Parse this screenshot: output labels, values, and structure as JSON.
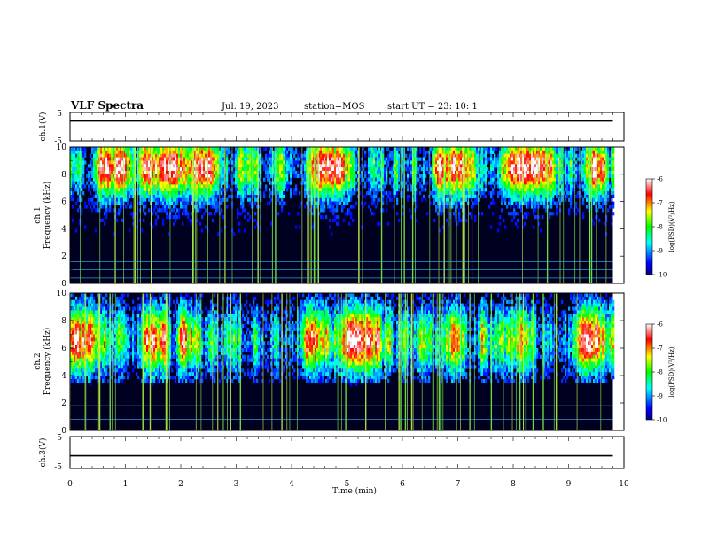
{
  "header": {
    "title": "VLF Spectra",
    "date": "Jul. 19, 2023",
    "station": "station=MOS",
    "start": "start UT =  23: 10: 1"
  },
  "chart_data": [
    {
      "type": "line",
      "panel": "ch1-voltage",
      "ylabel": "ch.1(V)",
      "ylim": [
        -5,
        5
      ],
      "y_ticks": [
        "5",
        "-5"
      ],
      "x": [
        0,
        9.8
      ],
      "values": [
        2,
        2
      ]
    },
    {
      "type": "heatmap",
      "panel": "ch1-spectrogram",
      "ylabel": "ch.1\nFrequency (kHz)",
      "ylim": [
        0,
        10
      ],
      "y_ticks": [
        "0",
        "2",
        "4",
        "6",
        "8",
        "10"
      ],
      "xlim": [
        0,
        9.8
      ],
      "peak_band_khz": [
        8.0,
        9.0
      ],
      "line_frequencies_khz": [
        0.4,
        1.0,
        1.6
      ],
      "colorbar": {
        "label": "log(PSD)(V²/Hz)",
        "range": [
          -10,
          -6
        ],
        "ticks": [
          "-6",
          "-7",
          "-8",
          "-9",
          "-10"
        ]
      }
    },
    {
      "type": "heatmap",
      "panel": "ch2-spectrogram",
      "ylabel": "ch.2\nFrequency (kHz)",
      "ylim": [
        0,
        10
      ],
      "y_ticks": [
        "0",
        "2",
        "4",
        "6",
        "8",
        "10"
      ],
      "xlim": [
        0,
        9.8
      ],
      "peak_band_khz": [
        5.8,
        7.4
      ],
      "line_frequencies_khz": [
        0.8,
        1.8,
        2.3
      ],
      "colorbar": {
        "label": "log(PSD)(V²/Hz)",
        "range": [
          -10,
          -6
        ],
        "ticks": [
          "-6",
          "-7",
          "-8",
          "-9",
          "-10"
        ]
      }
    },
    {
      "type": "line",
      "panel": "ch3-voltage",
      "ylabel": "ch.3(V)",
      "ylim": [
        -5,
        5
      ],
      "y_ticks": [
        "5",
        "-5"
      ],
      "x": [
        0,
        9.8
      ],
      "values": [
        -1,
        -1
      ]
    }
  ],
  "x_axis": {
    "label": "Time (min)",
    "range": [
      0,
      10
    ],
    "ticks": [
      "0",
      "1",
      "2",
      "3",
      "4",
      "5",
      "6",
      "7",
      "8",
      "9",
      "10"
    ]
  },
  "colors": {
    "colormap": [
      "#000080",
      "#0000ff",
      "#00ffff",
      "#00ff00",
      "#ffff00",
      "#ff0000",
      "#ffffff"
    ]
  }
}
